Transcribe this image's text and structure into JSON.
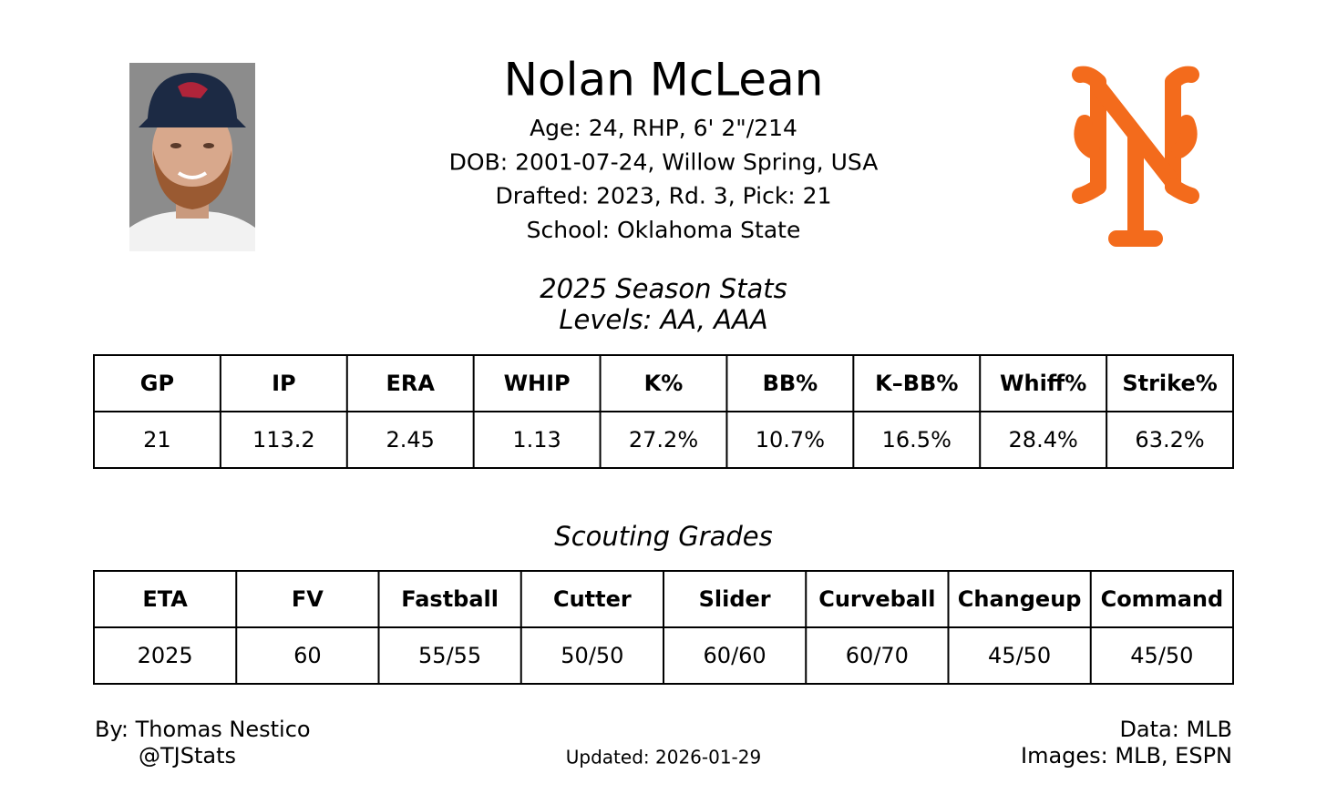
{
  "header": {
    "name": "Nolan McLean",
    "info": [
      "Age: 24, RHP, 6' 2\"/214",
      "DOB: 2001-07-24, Willow Spring, USA",
      "Drafted: 2023, Rd. 3, Pick: 21",
      "School: Oklahoma State"
    ]
  },
  "stats": {
    "title": "2025 Season Stats",
    "subtitle": "Levels: AA, AAA",
    "table": {
      "headers": [
        "GP",
        "IP",
        "ERA",
        "WHIP",
        "K%",
        "BB%",
        "K–BB%",
        "Whiff%",
        "Strike%"
      ],
      "rows": [
        [
          "21",
          "113.2",
          "2.45",
          "1.13",
          "27.2%",
          "10.7%",
          "16.5%",
          "28.4%",
          "63.2%"
        ]
      ]
    }
  },
  "grades": {
    "title": "Scouting Grades",
    "table": {
      "headers": [
        "ETA",
        "FV",
        "Fastball",
        "Cutter",
        "Slider",
        "Curveball",
        "Changeup",
        "Command"
      ],
      "rows": [
        [
          "2025",
          "60",
          "55/55",
          "50/50",
          "60/60",
          "60/70",
          "45/50",
          "45/50"
        ]
      ]
    }
  },
  "footer": {
    "author": "By: Thomas Nestico",
    "handle": "@TJStats",
    "updated": "Updated: 2026-01-29",
    "data_source": "Data: MLB",
    "image_source": "Images: MLB, ESPN"
  }
}
